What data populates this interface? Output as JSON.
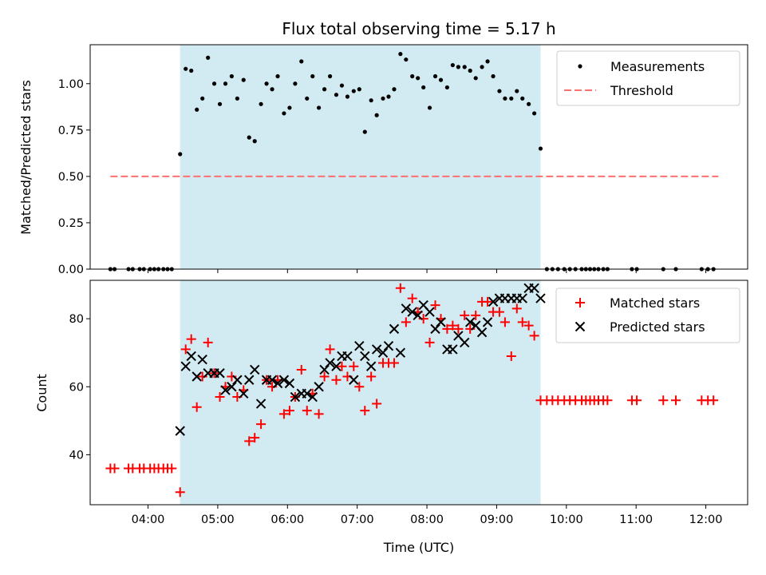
{
  "chart_data": {
    "type": "scatter",
    "title": "Flux total observing time = 5.17 h",
    "xlabel": "Time (UTC)",
    "x_unit": "decimal hours UTC",
    "xlim": [
      3.17,
      12.6
    ],
    "x_ticks": [
      4,
      5,
      6,
      7,
      8,
      9,
      10,
      11,
      12
    ],
    "x_tick_labels": [
      "04:00",
      "05:00",
      "06:00",
      "07:00",
      "08:00",
      "09:00",
      "10:00",
      "11:00",
      "12:00"
    ],
    "observing_window": {
      "start": 4.46,
      "end": 9.63,
      "color": "#add8e6"
    },
    "top": {
      "ylabel": "Matched/Predicted stars",
      "ylim": [
        0,
        1.21
      ],
      "y_ticks": [
        0.0,
        0.25,
        0.5,
        0.75,
        1.0
      ],
      "y_tick_labels": [
        "0.00",
        "0.25",
        "0.50",
        "0.75",
        "1.00"
      ],
      "legend_position": "upper right",
      "legend": [
        "Measurements",
        "Threshold"
      ],
      "threshold": {
        "name": "Threshold",
        "value": 0.5,
        "x_range": [
          3.46,
          12.18
        ],
        "color": "#ff7070"
      },
      "measurements": {
        "name": "Measurements",
        "color": "#000000",
        "x": [
          3.46,
          3.52,
          3.72,
          3.78,
          3.88,
          3.94,
          4.03,
          4.09,
          4.15,
          4.22,
          4.28,
          4.34,
          4.46,
          4.54,
          4.62,
          4.7,
          4.78,
          4.86,
          4.95,
          5.03,
          5.11,
          5.2,
          5.28,
          5.37,
          5.45,
          5.53,
          5.62,
          5.7,
          5.78,
          5.86,
          5.95,
          6.03,
          6.11,
          6.2,
          6.28,
          6.36,
          6.45,
          6.53,
          6.61,
          6.7,
          6.78,
          6.86,
          6.95,
          7.03,
          7.11,
          7.2,
          7.28,
          7.37,
          7.45,
          7.53,
          7.62,
          7.7,
          7.79,
          7.87,
          7.95,
          8.04,
          8.12,
          8.2,
          8.29,
          8.37,
          8.45,
          8.54,
          8.62,
          8.7,
          8.79,
          8.87,
          8.95,
          9.04,
          9.12,
          9.21,
          9.29,
          9.37,
          9.46,
          9.54,
          9.63,
          9.72,
          9.8,
          9.88,
          9.97,
          10.05,
          10.13,
          10.22,
          10.28,
          10.34,
          10.4,
          10.46,
          10.53,
          10.59,
          10.94,
          11.01,
          11.39,
          11.57,
          11.94,
          12.03,
          12.11
        ],
        "y": [
          0,
          0,
          0,
          0,
          0,
          0,
          0,
          0,
          0,
          0,
          0,
          0,
          0.62,
          1.08,
          1.07,
          0.86,
          0.92,
          1.14,
          1.0,
          0.89,
          1.0,
          1.04,
          0.92,
          1.02,
          0.71,
          0.69,
          0.89,
          1.0,
          0.97,
          1.04,
          0.84,
          0.87,
          1.0,
          1.12,
          0.92,
          1.04,
          0.87,
          0.97,
          1.04,
          0.94,
          0.99,
          0.93,
          0.96,
          0.97,
          0.74,
          0.91,
          0.83,
          0.92,
          0.93,
          0.97,
          1.16,
          1.13,
          1.04,
          1.03,
          0.98,
          0.87,
          1.04,
          1.02,
          0.98,
          1.1,
          1.09,
          1.09,
          1.07,
          1.03,
          1.09,
          1.12,
          1.04,
          0.96,
          0.92,
          0.92,
          0.96,
          0.92,
          0.89,
          0.84,
          0.65,
          0,
          0,
          0,
          0,
          0,
          0,
          0,
          0,
          0,
          0,
          0,
          0,
          0,
          0,
          0,
          0,
          0,
          0,
          0,
          0
        ]
      }
    },
    "bottom": {
      "ylabel": "Count",
      "ylim": [
        25.3,
        91.3
      ],
      "y_ticks": [
        40,
        60,
        80
      ],
      "y_tick_labels": [
        "40",
        "60",
        "80"
      ],
      "legend_position": "upper right",
      "legend": [
        "Matched stars",
        "Predicted stars"
      ],
      "series": [
        {
          "name": "Matched stars",
          "marker": "+",
          "color": "#ff0000",
          "x": [
            3.46,
            3.52,
            3.72,
            3.78,
            3.88,
            3.94,
            4.03,
            4.09,
            4.15,
            4.22,
            4.28,
            4.34,
            4.46,
            4.54,
            4.62,
            4.7,
            4.78,
            4.86,
            4.95,
            5.03,
            5.11,
            5.2,
            5.28,
            5.37,
            5.45,
            5.53,
            5.62,
            5.7,
            5.78,
            5.86,
            5.95,
            6.03,
            6.11,
            6.2,
            6.28,
            6.36,
            6.45,
            6.53,
            6.61,
            6.7,
            6.78,
            6.86,
            6.95,
            7.03,
            7.11,
            7.2,
            7.28,
            7.37,
            7.45,
            7.53,
            7.62,
            7.7,
            7.79,
            7.87,
            7.95,
            8.04,
            8.12,
            8.2,
            8.29,
            8.37,
            8.45,
            8.54,
            8.62,
            8.7,
            8.79,
            8.87,
            8.95,
            9.04,
            9.12,
            9.21,
            9.29,
            9.37,
            9.46,
            9.54,
            9.63,
            9.72,
            9.8,
            9.88,
            9.97,
            10.05,
            10.13,
            10.22,
            10.28,
            10.34,
            10.4,
            10.46,
            10.53,
            10.59,
            10.94,
            11.01,
            11.39,
            11.57,
            11.94,
            12.03,
            12.11
          ],
          "y": [
            36,
            36,
            36,
            36,
            36,
            36,
            36,
            36,
            36,
            36,
            36,
            36,
            29,
            71,
            74,
            54,
            63,
            73,
            64,
            57,
            60,
            63,
            57,
            59,
            44,
            45,
            49,
            62,
            60,
            62,
            52,
            53,
            57,
            65,
            53,
            58,
            52,
            63,
            71,
            62,
            66,
            63,
            66,
            60,
            53,
            63,
            55,
            67,
            67,
            67,
            89,
            79,
            86,
            82,
            80,
            73,
            84,
            80,
            77,
            78,
            77,
            81,
            77,
            81,
            85,
            85,
            82,
            82,
            79,
            69,
            83,
            79,
            78,
            75,
            56,
            56,
            56,
            56,
            56,
            56,
            56,
            56,
            56,
            56,
            56,
            56,
            56,
            56,
            56,
            56,
            56,
            56,
            56,
            56,
            56
          ]
        },
        {
          "name": "Predicted stars",
          "marker": "x",
          "color": "#000000",
          "x": [
            4.46,
            4.54,
            4.62,
            4.7,
            4.78,
            4.86,
            4.95,
            5.03,
            5.11,
            5.2,
            5.28,
            5.37,
            5.45,
            5.53,
            5.62,
            5.7,
            5.78,
            5.86,
            5.95,
            6.03,
            6.11,
            6.2,
            6.28,
            6.36,
            6.45,
            6.53,
            6.61,
            6.7,
            6.78,
            6.86,
            6.95,
            7.03,
            7.11,
            7.2,
            7.28,
            7.37,
            7.45,
            7.53,
            7.62,
            7.7,
            7.79,
            7.87,
            7.95,
            8.04,
            8.12,
            8.2,
            8.29,
            8.37,
            8.45,
            8.54,
            8.62,
            8.7,
            8.79,
            8.87,
            8.95,
            9.04,
            9.12,
            9.21,
            9.29,
            9.37,
            9.46,
            9.54,
            9.63
          ],
          "y": [
            47,
            66,
            69,
            63,
            68,
            64,
            64,
            64,
            59,
            60,
            62,
            58,
            62,
            65,
            55,
            62,
            62,
            61,
            62,
            61,
            57,
            58,
            58,
            57,
            60,
            65,
            67,
            66,
            69,
            69,
            62,
            72,
            69,
            66,
            71,
            70,
            72,
            77,
            70,
            83,
            82,
            81,
            84,
            82,
            77,
            79,
            71,
            71,
            75,
            73,
            79,
            78,
            76,
            79,
            85,
            86,
            86,
            86,
            86,
            86,
            89,
            89,
            86
          ]
        }
      ]
    }
  }
}
